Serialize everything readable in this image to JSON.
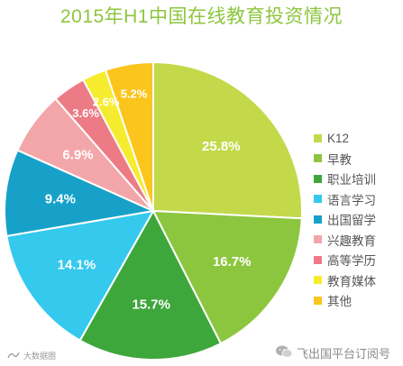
{
  "chart_data": {
    "type": "pie",
    "title": "2015年H1中国在线教育投资情况",
    "slices": [
      {
        "label": "K12",
        "value": 25.8,
        "value_label": "25.8%",
        "color": "#c3d94a"
      },
      {
        "label": "早教",
        "value": 16.7,
        "value_label": "16.7%",
        "color": "#8cc63f"
      },
      {
        "label": "职业培训",
        "value": 15.7,
        "value_label": "15.7%",
        "color": "#3ea73b"
      },
      {
        "label": "语言学习",
        "value": 14.1,
        "value_label": "14.1%",
        "color": "#35c9ee"
      },
      {
        "label": "出国留学",
        "value": 9.4,
        "value_label": "9.4%",
        "color": "#17a1c9"
      },
      {
        "label": "兴趣教育",
        "value": 6.9,
        "value_label": "6.9%",
        "color": "#f3a6a9"
      },
      {
        "label": "高等学历",
        "value": 3.6,
        "value_label": "3.6%",
        "color": "#ec7b85"
      },
      {
        "label": "教育媒体",
        "value": 2.6,
        "value_label": "2.6%",
        "color": "#f6ec2f"
      },
      {
        "label": "其他",
        "value": 5.2,
        "value_label": "5.2%",
        "color": "#fbc51e"
      }
    ],
    "start_angle_deg": 0,
    "direction": "clockwise",
    "legend_position": "right"
  },
  "watermark": {
    "left_text": "大数据圈",
    "right_text": "飞出国平台订阅号"
  }
}
